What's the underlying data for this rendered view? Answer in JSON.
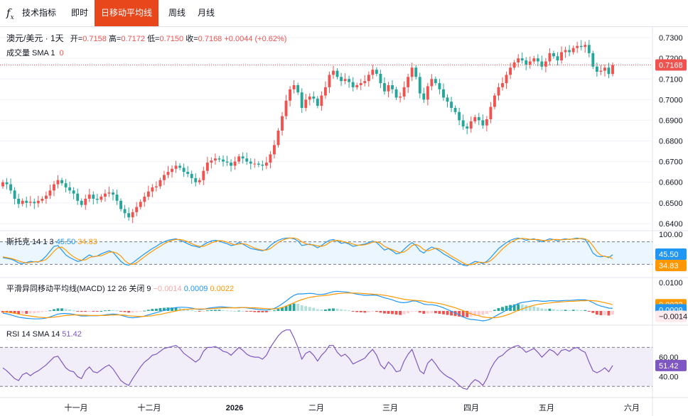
{
  "toolbar": {
    "indicators_label": "技术指标",
    "tabs": [
      {
        "label": "即时",
        "active": false
      },
      {
        "label": "日移动平均线",
        "active": true
      },
      {
        "label": "周线",
        "active": false
      },
      {
        "label": "月线",
        "active": false
      }
    ],
    "accent_color": "#e8471c"
  },
  "legend": {
    "symbol": "澳元/美元 · 1天",
    "open_label": "开=",
    "open": "0.7158",
    "high_label": "高=",
    "high": "0.7172",
    "low_label": "低=",
    "low": "0.7150",
    "close_label": "收=",
    "close": "0.7168",
    "change": "+0.0044 (+0.62%)",
    "volume_label": "成交量 SMA 1",
    "volume_value": "0"
  },
  "stoch": {
    "label": "斯托克 14 1 3",
    "k": "45.50",
    "d": "34.83"
  },
  "macd": {
    "label": "平滑异同移动平均线(MACD) 12 26 关闭 9",
    "hist": "−0.0014",
    "macd": "0.0009",
    "signal": "0.0022"
  },
  "rsi": {
    "label": "RSI 14 SMA 14",
    "value": "51.42"
  },
  "chart_data": {
    "type": "candlestick",
    "title": "澳元/美元 · 1天",
    "x_ticks": [
      "十一月",
      "十二月",
      "2026",
      "二月",
      "三月",
      "四月",
      "五月",
      "六月"
    ],
    "price_axis": {
      "ticks": [
        "0.7300",
        "0.7200",
        "0.7100",
        "0.7000",
        "0.6900",
        "0.6800",
        "0.6700",
        "0.6600",
        "0.6500",
        "0.6400"
      ],
      "range": [
        0.6372,
        0.7345
      ],
      "last_price": "0.7168"
    },
    "close_series": [
      0.66,
      0.659,
      0.656,
      0.652,
      0.6495,
      0.651,
      0.65,
      0.6505,
      0.6498,
      0.651,
      0.652,
      0.6535,
      0.656,
      0.659,
      0.661,
      0.6595,
      0.6575,
      0.656,
      0.6545,
      0.651,
      0.649,
      0.652,
      0.654,
      0.652,
      0.6515,
      0.653,
      0.6545,
      0.655,
      0.654,
      0.651,
      0.647,
      0.645,
      0.643,
      0.6455,
      0.648,
      0.6505,
      0.653,
      0.6555,
      0.6575,
      0.658,
      0.661,
      0.6635,
      0.665,
      0.6665,
      0.668,
      0.667,
      0.665,
      0.664,
      0.662,
      0.66,
      0.661,
      0.6655,
      0.6695,
      0.6705,
      0.6715,
      0.671,
      0.67,
      0.6695,
      0.668,
      0.67,
      0.6725,
      0.6715,
      0.67,
      0.669,
      0.669,
      0.6685,
      0.668,
      0.6695,
      0.6735,
      0.678,
      0.685,
      0.692,
      0.6995,
      0.705,
      0.707,
      0.7035,
      0.696,
      0.7,
      0.7015,
      0.7005,
      0.697,
      0.702,
      0.706,
      0.712,
      0.714,
      0.711,
      0.709,
      0.71,
      0.7085,
      0.706,
      0.707,
      0.708,
      0.709,
      0.712,
      0.7145,
      0.7125,
      0.708,
      0.704,
      0.707,
      0.705,
      0.701,
      0.7015,
      0.706,
      0.711,
      0.7155,
      0.711,
      0.703,
      0.7,
      0.7065,
      0.71,
      0.708,
      0.705,
      0.701,
      0.699,
      0.696,
      0.694,
      0.69,
      0.687,
      0.686,
      0.6895,
      0.6915,
      0.69,
      0.6875,
      0.6905,
      0.6965,
      0.702,
      0.706,
      0.708,
      0.712,
      0.7155,
      0.718,
      0.72,
      0.719,
      0.717,
      0.7185,
      0.72,
      0.7185,
      0.716,
      0.7185,
      0.7225,
      0.721,
      0.719,
      0.723,
      0.724,
      0.723,
      0.725,
      0.726,
      0.7255,
      0.7265,
      0.7225,
      0.716,
      0.7135,
      0.714,
      0.7155,
      0.7124,
      0.7168
    ],
    "stoch_k": [
      38,
      36,
      34,
      30,
      24,
      22,
      25,
      28,
      27,
      26,
      32,
      42,
      55,
      68,
      70,
      58,
      45,
      38,
      33,
      28,
      30,
      38,
      45,
      40,
      42,
      48,
      52,
      56,
      52,
      40,
      28,
      20,
      18,
      24,
      32,
      40,
      48,
      55,
      62,
      68,
      75,
      80,
      84,
      86,
      88,
      84,
      80,
      75,
      70,
      68,
      65,
      72,
      78,
      82,
      84,
      82,
      78,
      75,
      70,
      72,
      78,
      74,
      68,
      62,
      60,
      58,
      56,
      60,
      70,
      78,
      84,
      88,
      90,
      90,
      88,
      82,
      70,
      72,
      74,
      70,
      64,
      70,
      78,
      84,
      86,
      82,
      76,
      78,
      74,
      68,
      70,
      72,
      74,
      78,
      82,
      78,
      68,
      58,
      62,
      56,
      48,
      50,
      60,
      70,
      78,
      70,
      56,
      50,
      60,
      66,
      62,
      56,
      48,
      42,
      36,
      30,
      24,
      18,
      16,
      22,
      28,
      26,
      22,
      28,
      38,
      50,
      62,
      70,
      78,
      84,
      88,
      90,
      88,
      84,
      86,
      88,
      84,
      80,
      84,
      88,
      86,
      82,
      86,
      88,
      86,
      88,
      90,
      88,
      86,
      70,
      50,
      42,
      40,
      42,
      38,
      45.5
    ],
    "stoch_d": [
      40,
      38,
      36,
      33,
      29,
      26,
      24,
      25,
      27,
      27,
      29,
      33,
      43,
      55,
      64,
      66,
      58,
      48,
      40,
      34,
      31,
      32,
      38,
      41,
      42,
      43,
      47,
      52,
      53,
      50,
      42,
      30,
      22,
      20,
      24,
      32,
      40,
      48,
      55,
      62,
      68,
      75,
      80,
      84,
      86,
      86,
      84,
      80,
      75,
      71,
      68,
      68,
      72,
      77,
      81,
      83,
      82,
      79,
      75,
      72,
      74,
      75,
      73,
      68,
      63,
      60,
      58,
      58,
      62,
      70,
      78,
      84,
      88,
      90,
      90,
      87,
      80,
      75,
      72,
      72,
      69,
      68,
      71,
      78,
      83,
      84,
      82,
      79,
      77,
      74,
      71,
      71,
      72,
      75,
      79,
      80,
      76,
      68,
      63,
      59,
      55,
      51,
      53,
      60,
      70,
      73,
      68,
      59,
      56,
      59,
      63,
      61,
      56,
      49,
      42,
      36,
      30,
      24,
      19,
      19,
      22,
      26,
      25,
      25,
      30,
      39,
      50,
      61,
      70,
      78,
      84,
      88,
      89,
      88,
      86,
      86,
      86,
      84,
      83,
      84,
      86,
      86,
      85,
      86,
      87,
      87,
      88,
      89,
      88,
      82,
      69,
      54,
      44,
      41,
      40,
      34.83
    ],
    "macd_line": [
      -0.0008,
      -0.001,
      -0.0014,
      -0.0018,
      -0.0022,
      -0.0024,
      -0.0026,
      -0.0027,
      -0.0028,
      -0.0028,
      -0.0027,
      -0.0025,
      -0.0021,
      -0.0016,
      -0.0011,
      -0.0009,
      -0.0009,
      -0.001,
      -0.0012,
      -0.0015,
      -0.0018,
      -0.0018,
      -0.0017,
      -0.0017,
      -0.0017,
      -0.0016,
      -0.0014,
      -0.0012,
      -0.0011,
      -0.0012,
      -0.0015,
      -0.0019,
      -0.0023,
      -0.0024,
      -0.0023,
      -0.0021,
      -0.0018,
      -0.0014,
      -0.001,
      -0.0006,
      -0.0002,
      0.0002,
      0.0006,
      0.0009,
      0.0012,
      0.0013,
      0.0013,
      0.0012,
      0.001,
      0.0007,
      0.0005,
      0.0006,
      0.0009,
      0.0011,
      0.0013,
      0.0014,
      0.0014,
      0.0013,
      0.0012,
      0.0011,
      0.0012,
      0.0012,
      0.0011,
      0.0009,
      0.0007,
      0.0005,
      0.0004,
      0.0003,
      0.0005,
      0.0009,
      0.0016,
      0.0025,
      0.0035,
      0.0046,
      0.0055,
      0.006,
      0.006,
      0.0061,
      0.0062,
      0.0061,
      0.0058,
      0.0058,
      0.006,
      0.0064,
      0.0068,
      0.0069,
      0.0068,
      0.0067,
      0.0065,
      0.0062,
      0.0059,
      0.0057,
      0.0055,
      0.0055,
      0.0056,
      0.0055,
      0.0051,
      0.0046,
      0.0043,
      0.0039,
      0.0034,
      0.003,
      0.0029,
      0.0031,
      0.0035,
      0.0035,
      0.003,
      0.0024,
      0.0022,
      0.0022,
      0.002,
      0.0016,
      0.0011,
      0.0005,
      -0.0001,
      -0.0007,
      -0.0014,
      -0.0021,
      -0.0027,
      -0.003,
      -0.0031,
      -0.0033,
      -0.0035,
      -0.0033,
      -0.0028,
      -0.002,
      -0.0012,
      -0.0005,
      0.0003,
      0.0011,
      0.0019,
      0.0026,
      0.003,
      0.0032,
      0.0034,
      0.0036,
      0.0036,
      0.0034,
      0.0034,
      0.0036,
      0.0036,
      0.0035,
      0.0036,
      0.0037,
      0.0037,
      0.0038,
      0.0039,
      0.0039,
      0.0039,
      0.0036,
      0.0029,
      0.0022,
      0.0017,
      0.0014,
      0.001,
      0.0009
    ],
    "macd_signal": [
      -0.0002,
      -0.0004,
      -0.0006,
      -0.0008,
      -0.0011,
      -0.0014,
      -0.0016,
      -0.0018,
      -0.002,
      -0.0022,
      -0.0023,
      -0.0024,
      -0.0023,
      -0.0022,
      -0.002,
      -0.0018,
      -0.0016,
      -0.0015,
      -0.0014,
      -0.0014,
      -0.0015,
      -0.0015,
      -0.0016,
      -0.0016,
      -0.0016,
      -0.0016,
      -0.0016,
      -0.0015,
      -0.0014,
      -0.0014,
      -0.0014,
      -0.0015,
      -0.0017,
      -0.0018,
      -0.0019,
      -0.002,
      -0.0019,
      -0.0018,
      -0.0017,
      -0.0014,
      -0.0012,
      -0.0009,
      -0.0006,
      -0.0003,
      0.0,
      0.0003,
      0.0005,
      0.0006,
      0.0007,
      0.0007,
      0.0007,
      0.0007,
      0.0007,
      0.0008,
      0.0009,
      0.001,
      0.0011,
      0.0011,
      0.0011,
      0.0011,
      0.0011,
      0.0012,
      0.0012,
      0.0011,
      0.0011,
      0.001,
      0.0009,
      0.0008,
      0.0007,
      0.0007,
      0.0009,
      0.0012,
      0.0017,
      0.0023,
      0.0029,
      0.0035,
      0.004,
      0.0044,
      0.0048,
      0.005,
      0.0052,
      0.0053,
      0.0055,
      0.0056,
      0.0059,
      0.0061,
      0.0062,
      0.0063,
      0.0063,
      0.0063,
      0.0063,
      0.0062,
      0.0061,
      0.006,
      0.0059,
      0.0058,
      0.0057,
      0.0055,
      0.0053,
      0.005,
      0.0047,
      0.0044,
      0.0041,
      0.0039,
      0.0038,
      0.0037,
      0.0036,
      0.0034,
      0.0031,
      0.003,
      0.0028,
      0.0026,
      0.0023,
      0.0019,
      0.0015,
      0.0011,
      0.0006,
      0.0001,
      -0.0005,
      -0.001,
      -0.0014,
      -0.0017,
      -0.0021,
      -0.0023,
      -0.0024,
      -0.0024,
      -0.0022,
      -0.0019,
      -0.0015,
      -0.001,
      -0.0004,
      0.0002,
      0.0007,
      0.0012,
      0.0016,
      0.002,
      0.0023,
      0.0025,
      0.0027,
      0.0028,
      0.003,
      0.0031,
      0.0032,
      0.0033,
      0.0034,
      0.0034,
      0.0035,
      0.0036,
      0.0036,
      0.0037,
      0.0036,
      0.0035,
      0.0032,
      0.0029,
      0.0026,
      0.0022
    ],
    "rsi": [
      49,
      46,
      42,
      38,
      36,
      42,
      44,
      41,
      44,
      46,
      49,
      52,
      56,
      60,
      61,
      55,
      49,
      46,
      45,
      40,
      38,
      46,
      50,
      45,
      44,
      47,
      50,
      52,
      48,
      42,
      36,
      33,
      31,
      38,
      44,
      50,
      55,
      58,
      62,
      63,
      66,
      69,
      70,
      71,
      72,
      69,
      64,
      61,
      58,
      55,
      58,
      66,
      70,
      70,
      71,
      69,
      66,
      65,
      62,
      66,
      70,
      67,
      63,
      61,
      60,
      60,
      58,
      62,
      70,
      76,
      82,
      86,
      88,
      88,
      80,
      70,
      58,
      64,
      66,
      62,
      56,
      62,
      66,
      72,
      72,
      65,
      61,
      63,
      59,
      53,
      55,
      57,
      59,
      64,
      68,
      62,
      52,
      48,
      55,
      51,
      45,
      46,
      56,
      63,
      68,
      57,
      46,
      43,
      54,
      58,
      53,
      47,
      43,
      40,
      38,
      35,
      31,
      28,
      27,
      33,
      37,
      35,
      31,
      38,
      48,
      55,
      60,
      62,
      66,
      69,
      71,
      72,
      69,
      65,
      67,
      69,
      65,
      60,
      64,
      68,
      66,
      62,
      67,
      68,
      66,
      69,
      70,
      67,
      65,
      55,
      46,
      44,
      46,
      49,
      45,
      51.42
    ]
  }
}
